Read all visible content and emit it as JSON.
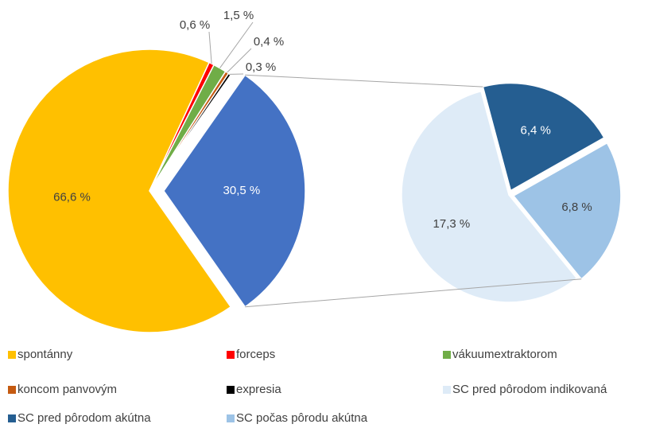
{
  "chart_data": {
    "type": "pie-of-pie",
    "categories": [
      "spontánny",
      "forceps",
      "vákuumextraktorom",
      "koncom panvovým",
      "expresia",
      null
    ],
    "values": [
      66.6,
      0.6,
      1.5,
      0.4,
      0.3,
      30.5
    ],
    "value_labels": [
      "66,6 %",
      "0,6 %",
      "1,5 %",
      "0,4 %",
      "0,3 %",
      "30,5 %"
    ],
    "colors": [
      "#FFC000",
      "#FF0000",
      "#70AD47",
      "#C55A11",
      "#000000",
      "#4472C4"
    ],
    "secondary": {
      "categories": [
        "SC pred pôrodom indikovaná",
        "SC pred pôrodom akútna",
        "SC počas pôrodu akútna"
      ],
      "values": [
        17.3,
        6.4,
        6.8
      ],
      "value_labels": [
        "17,3 %",
        "6,4 %",
        "6,8 %"
      ],
      "colors": [
        "#DEEBF7",
        "#255E91",
        "#9DC3E6"
      ]
    }
  }
}
